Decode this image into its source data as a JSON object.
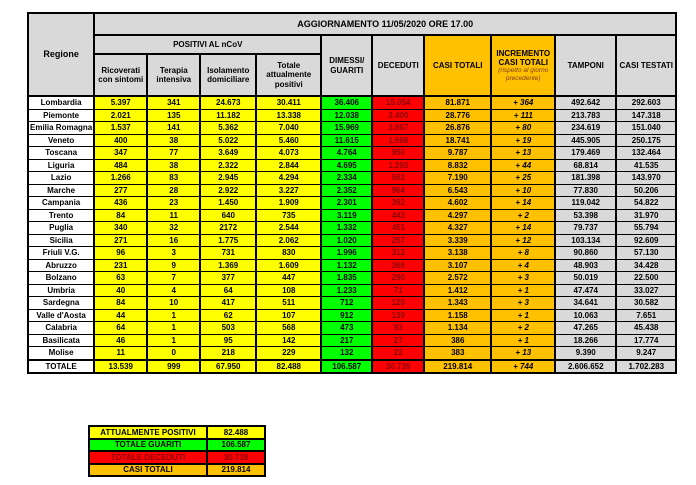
{
  "header": {
    "title": "AGGIORNAMENTO 11/05/2020 ORE 17.00",
    "regione": "Regione",
    "positivi_group": "POSITIVI AL nCoV",
    "sub_columns": [
      "Ricoverati con sintomi",
      "Terapia intensiva",
      "Isolamento domiciliare",
      "Totale attualmente positivi"
    ],
    "dimessi": "DIMESSI/ GUARITI",
    "deceduti": "DECEDUTI",
    "casi_totali": "CASI TOTALI",
    "incremento": "INCREMENTO CASI TOTALI",
    "incremento_sub": "(rispetto al giorno precedente)",
    "tamponi": "TAMPONI",
    "casi_testati": "CASI TESTATI"
  },
  "table": {
    "rows": [
      {
        "regione": "Lombardia",
        "ricoverati": "5.397",
        "terapia": "341",
        "isolamento": "24.673",
        "positivi": "30.411",
        "guariti": "36.406",
        "deceduti": "15.054",
        "casi": "81.871",
        "incremento": "+ 364",
        "tamponi": "492.642",
        "testati": "292.603"
      },
      {
        "regione": "Piemonte",
        "ricoverati": "2.021",
        "terapia": "135",
        "isolamento": "11.182",
        "positivi": "13.338",
        "guariti": "12.038",
        "deceduti": "3.400",
        "casi": "28.776",
        "incremento": "+ 111",
        "tamponi": "213.783",
        "testati": "147.318"
      },
      {
        "regione": "Emilia Romagna",
        "ricoverati": "1.537",
        "terapia": "141",
        "isolamento": "5.362",
        "positivi": "7.040",
        "guariti": "15.969",
        "deceduti": "3.867",
        "casi": "26.876",
        "incremento": "+ 80",
        "tamponi": "234.619",
        "testati": "151.040"
      },
      {
        "regione": "Veneto",
        "ricoverati": "400",
        "terapia": "38",
        "isolamento": "5.022",
        "positivi": "5.460",
        "guariti": "11.615",
        "deceduti": "1.666",
        "casi": "18.741",
        "incremento": "+ 19",
        "tamponi": "445.905",
        "testati": "250.175"
      },
      {
        "regione": "Toscana",
        "ricoverati": "347",
        "terapia": "77",
        "isolamento": "3.649",
        "positivi": "4.073",
        "guariti": "4.764",
        "deceduti": "950",
        "casi": "9.787",
        "incremento": "+ 13",
        "tamponi": "179.469",
        "testati": "132.464"
      },
      {
        "regione": "Liguria",
        "ricoverati": "484",
        "terapia": "38",
        "isolamento": "2.322",
        "positivi": "2.844",
        "guariti": "4.695",
        "deceduti": "1.293",
        "casi": "8.832",
        "incremento": "+ 44",
        "tamponi": "68.814",
        "testati": "41.535"
      },
      {
        "regione": "Lazio",
        "ricoverati": "1.266",
        "terapia": "83",
        "isolamento": "2.945",
        "positivi": "4.294",
        "guariti": "2.334",
        "deceduti": "562",
        "casi": "7.190",
        "incremento": "+ 25",
        "tamponi": "181.398",
        "testati": "143.970"
      },
      {
        "regione": "Marche",
        "ricoverati": "277",
        "terapia": "28",
        "isolamento": "2.922",
        "positivi": "3.227",
        "guariti": "2.352",
        "deceduti": "964",
        "casi": "6.543",
        "incremento": "+ 10",
        "tamponi": "77.830",
        "testati": "50.206"
      },
      {
        "regione": "Campania",
        "ricoverati": "436",
        "terapia": "23",
        "isolamento": "1.450",
        "positivi": "1.909",
        "guariti": "2.301",
        "deceduti": "392",
        "casi": "4.602",
        "incremento": "+ 14",
        "tamponi": "119.042",
        "testati": "54.822"
      },
      {
        "regione": "Trento",
        "ricoverati": "84",
        "terapia": "11",
        "isolamento": "640",
        "positivi": "735",
        "guariti": "3.119",
        "deceduti": "443",
        "casi": "4.297",
        "incremento": "+ 2",
        "tamponi": "53.398",
        "testati": "31.970"
      },
      {
        "regione": "Puglia",
        "ricoverati": "340",
        "terapia": "32",
        "isolamento": "2172",
        "positivi": "2.544",
        "guariti": "1.332",
        "deceduti": "451",
        "casi": "4.327",
        "incremento": "+ 14",
        "tamponi": "79.737",
        "testati": "55.794"
      },
      {
        "regione": "Sicilia",
        "ricoverati": "271",
        "terapia": "16",
        "isolamento": "1.775",
        "positivi": "2.062",
        "guariti": "1.020",
        "deceduti": "257",
        "casi": "3.339",
        "incremento": "+ 12",
        "tamponi": "103.134",
        "testati": "92.609"
      },
      {
        "regione": "Friuli V.G.",
        "ricoverati": "96",
        "terapia": "3",
        "isolamento": "731",
        "positivi": "830",
        "guariti": "1.996",
        "deceduti": "312",
        "casi": "3.138",
        "incremento": "+ 8",
        "tamponi": "90.860",
        "testati": "57.130"
      },
      {
        "regione": "Abruzzo",
        "ricoverati": "231",
        "terapia": "9",
        "isolamento": "1.369",
        "positivi": "1.609",
        "guariti": "1.132",
        "deceduti": "366",
        "casi": "3.107",
        "incremento": "+ 4",
        "tamponi": "48.903",
        "testati": "34.428"
      },
      {
        "regione": "Bolzano",
        "ricoverati": "63",
        "terapia": "7",
        "isolamento": "377",
        "positivi": "447",
        "guariti": "1.835",
        "deceduti": "290",
        "casi": "2.572",
        "incremento": "+ 3",
        "tamponi": "50.019",
        "testati": "22.500"
      },
      {
        "regione": "Umbria",
        "ricoverati": "40",
        "terapia": "4",
        "isolamento": "64",
        "positivi": "108",
        "guariti": "1.233",
        "deceduti": "71",
        "casi": "1.412",
        "incremento": "+ 1",
        "tamponi": "47.474",
        "testati": "33.027"
      },
      {
        "regione": "Sardegna",
        "ricoverati": "84",
        "terapia": "10",
        "isolamento": "417",
        "positivi": "511",
        "guariti": "712",
        "deceduti": "120",
        "casi": "1.343",
        "incremento": "+ 3",
        "tamponi": "34.641",
        "testati": "30.582"
      },
      {
        "regione": "Valle d'Aosta",
        "ricoverati": "44",
        "terapia": "1",
        "isolamento": "62",
        "positivi": "107",
        "guariti": "912",
        "deceduti": "139",
        "casi": "1.158",
        "incremento": "+ 1",
        "tamponi": "10.063",
        "testati": "7.651"
      },
      {
        "regione": "Calabria",
        "ricoverati": "64",
        "terapia": "1",
        "isolamento": "503",
        "positivi": "568",
        "guariti": "473",
        "deceduti": "93",
        "casi": "1.134",
        "incremento": "+ 2",
        "tamponi": "47.265",
        "testati": "45.438"
      },
      {
        "regione": "Basilicata",
        "ricoverati": "46",
        "terapia": "1",
        "isolamento": "95",
        "positivi": "142",
        "guariti": "217",
        "deceduti": "27",
        "casi": "386",
        "incremento": "+ 1",
        "tamponi": "18.266",
        "testati": "17.774"
      },
      {
        "regione": "Molise",
        "ricoverati": "11",
        "terapia": "0",
        "isolamento": "218",
        "positivi": "229",
        "guariti": "132",
        "deceduti": "22",
        "casi": "383",
        "incremento": "+ 13",
        "tamponi": "9.390",
        "testati": "9.247"
      }
    ],
    "totale": {
      "regione": "TOTALE",
      "ricoverati": "13.539",
      "terapia": "999",
      "isolamento": "67.950",
      "positivi": "82.488",
      "guariti": "106.587",
      "deceduti": "30.739",
      "casi": "219.814",
      "incremento": "+ 744",
      "tamponi": "2.606.652",
      "testati": "1.702.283"
    }
  },
  "summary": {
    "rows": [
      {
        "label": "ATTUALMENTE POSITIVI",
        "value": "82.488",
        "type": "yellow"
      },
      {
        "label": "TOTALE GUARITI",
        "value": "106.587",
        "type": "green"
      },
      {
        "label": "TOTALE DECEDUTI",
        "value": "30.739",
        "type": "red"
      },
      {
        "label": "CASI TOTALI",
        "value": "219.814",
        "type": "orange"
      }
    ]
  },
  "colors": {
    "header_gray": "#d9d9d9",
    "positivi_yellow": "#ffff00",
    "guariti_green": "#00ff00",
    "deceduti_red": "#ff0000",
    "deceduti_text": "#8b0000",
    "casi_orange": "#ffc000",
    "border_black": "#000000"
  }
}
